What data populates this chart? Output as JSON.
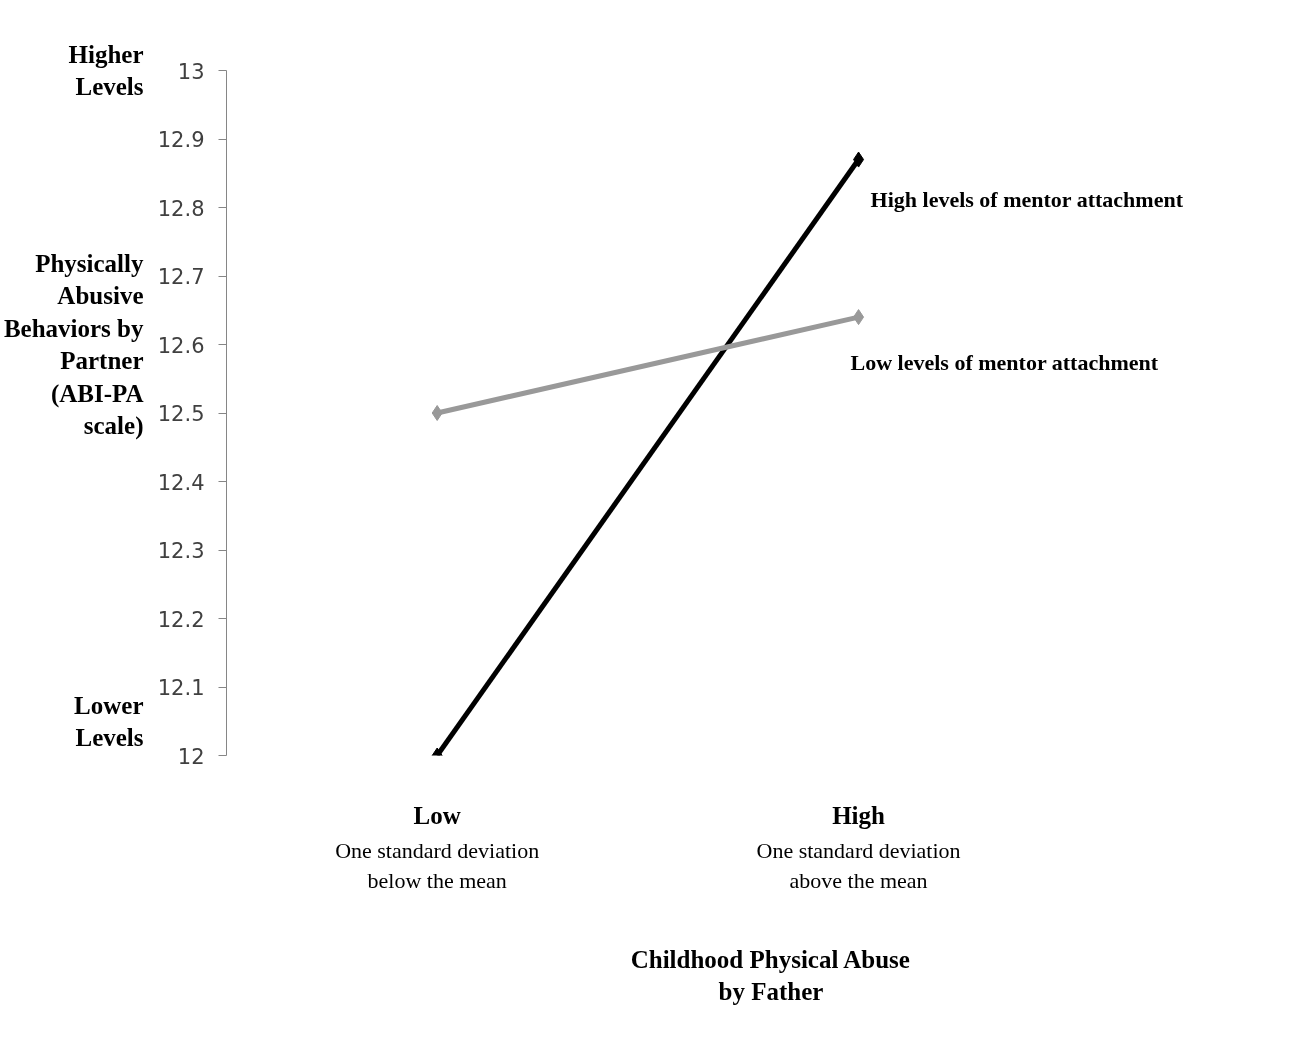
{
  "chart_data": {
    "type": "line",
    "xlabel": "Childhood Physical Abuse by Father",
    "ylabel": "Physically Abusive Behaviors by Partner (ABI-PA scale)",
    "categories": [
      "Low",
      "High"
    ],
    "series": [
      {
        "name": "High levels of mentor attachment",
        "color": "#000000",
        "values": [
          12.0,
          12.87
        ]
      },
      {
        "name": "Low levels of mentor attachment",
        "color": "#999999",
        "values": [
          12.5,
          12.64
        ]
      }
    ],
    "ylim": [
      12,
      13
    ],
    "yticks": [
      12,
      12.1,
      12.2,
      12.3,
      12.4,
      12.5,
      12.6,
      12.7,
      12.8,
      12.9,
      13
    ],
    "annotations": [
      "Higher Levels",
      "Lower Levels",
      "One standard deviation below the mean",
      "One standard deviation above the mean"
    ],
    "marker": "diamond",
    "line_style": "solid",
    "grid": false,
    "legend": false
  }
}
